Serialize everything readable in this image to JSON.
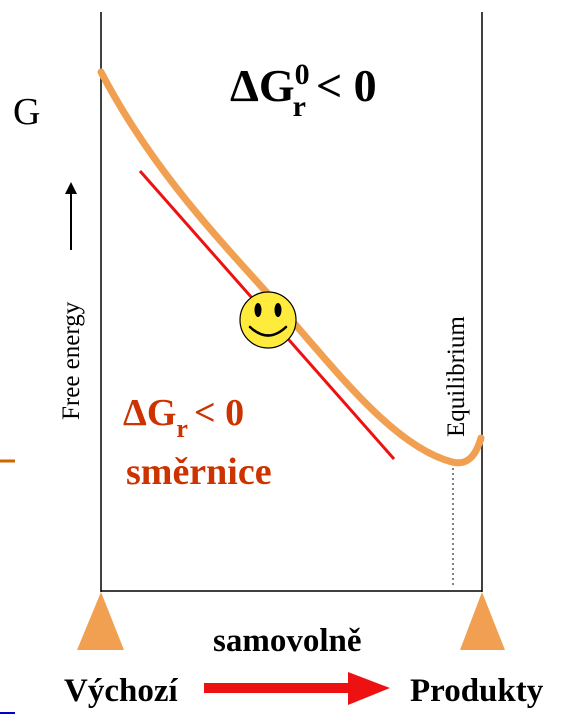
{
  "labels": {
    "g_axis": "G",
    "delta_standard": {
      "delta": "Δ",
      "g": "G",
      "superscript": "0",
      "subscript": "r",
      "relation": "< 0"
    },
    "delta_reaction": {
      "delta": "Δ",
      "g": "G",
      "subscript": "r",
      "relation": "< 0"
    },
    "slope_word": "směrnice",
    "free_energy": "Free energy",
    "equilibrium": "Equilibrium",
    "spontaneous": "samovolně",
    "reactants": "Výchozí",
    "products": "Produkty"
  },
  "colors": {
    "curve": "#f0a050",
    "tangent": "#ee1111",
    "red_text": "#cc3300",
    "support_triangles": "#f0a050",
    "arrow": "#ee1111",
    "smiley_fill": "#ffeb3b",
    "frame": "#000000",
    "left_accent": "#cc6600",
    "bottom_accent": "#0000cc"
  },
  "icons": {
    "mood": "smiley-face-icon",
    "up_arrow": "up-arrow-icon",
    "direction": "right-arrow-icon"
  }
}
